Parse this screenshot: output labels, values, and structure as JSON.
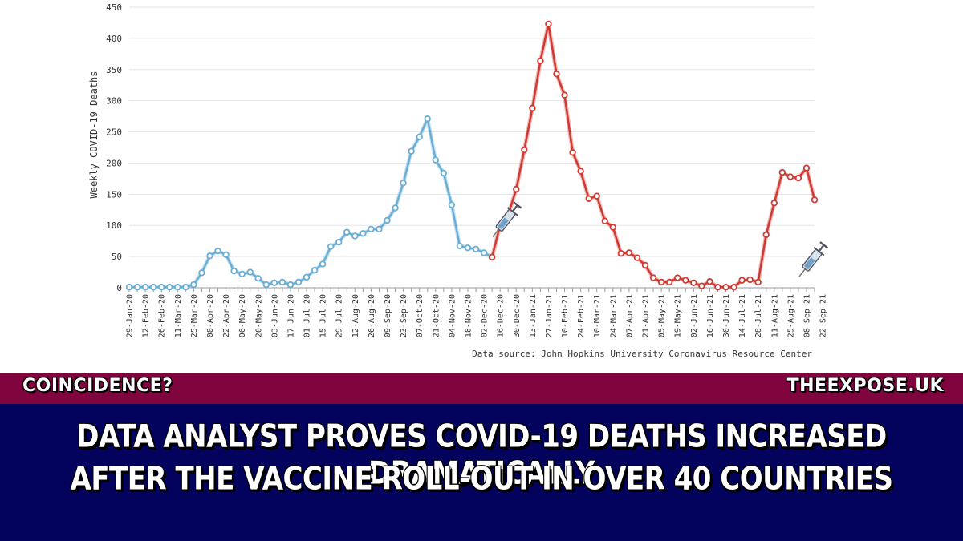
{
  "chart_data": {
    "type": "line",
    "ylabel": "Weekly COVID-19 Deaths",
    "xlabel": "",
    "ylim": [
      0,
      450
    ],
    "yticks": [
      0,
      50,
      100,
      150,
      200,
      250,
      300,
      350,
      400,
      450
    ],
    "grid": true,
    "x_tick_labels": [
      "29-Jan-20",
      "12-Feb-20",
      "26-Feb-20",
      "11-Mar-20",
      "25-Mar-20",
      "08-Apr-20",
      "22-Apr-20",
      "06-May-20",
      "20-May-20",
      "03-Jun-20",
      "17-Jun-20",
      "01-Jul-20",
      "15-Jul-20",
      "29-Jul-20",
      "12-Aug-20",
      "26-Aug-20",
      "09-Sep-20",
      "23-Sep-20",
      "07-Oct-20",
      "21-Oct-20",
      "04-Nov-20",
      "18-Nov-20",
      "02-Dec-20",
      "16-Dec-20",
      "30-Dec-20",
      "13-Jan-21",
      "27-Jan-21",
      "10-Feb-21",
      "24-Feb-21",
      "10-Mar-21",
      "24-Mar-21",
      "07-Apr-21",
      "21-Apr-21",
      "05-May-21",
      "19-May-21",
      "02-Jun-21",
      "16-Jun-21",
      "30-Jun-21",
      "14-Jul-21",
      "28-Jul-21",
      "11-Aug-21",
      "25-Aug-21",
      "08-Sep-21",
      "22-Sep-21"
    ],
    "series": [
      {
        "name": "",
        "color": "#6aaed6",
        "values": [
          1,
          1,
          1,
          1,
          1,
          1,
          1,
          1,
          5,
          24,
          51,
          59,
          53,
          27,
          22,
          25,
          15,
          5,
          8,
          9,
          5,
          9,
          17,
          28,
          38,
          66,
          73,
          89,
          83,
          87,
          94,
          94,
          108,
          128,
          168,
          219,
          242,
          271,
          205,
          184,
          133,
          67,
          64,
          62,
          56,
          49
        ]
      },
      {
        "name": "",
        "color": "#d13a33",
        "values": [
          49,
          100,
          117,
          158,
          221,
          288,
          364,
          423,
          343,
          309,
          217,
          187,
          143,
          147,
          107,
          97,
          55,
          56,
          48,
          36,
          16,
          9,
          9,
          16,
          12,
          8,
          3,
          10,
          1,
          1,
          1,
          12,
          13,
          9,
          85,
          136,
          185,
          178,
          176,
          192,
          141
        ]
      }
    ],
    "vaccine_markers": [
      {
        "x_index": 46,
        "y": 100
      },
      {
        "x_index": 84,
        "y": 36
      }
    ],
    "source": "Data source: John Hopkins University Coronavirus Resource Center"
  },
  "banner": {
    "left_label": "COINCIDENCE?",
    "right_label": "THEEXPOSE.UK",
    "colors": {
      "strip": "#80043e",
      "box": "#03035e",
      "text": "#ffffff"
    }
  },
  "headline": {
    "line1": "DATA ANALYST PROVES COVID-19 DEATHS INCREASED DRAMATICALLY",
    "line2": "AFTER THE VACCINE ROLL-OUT IN OVER 40 COUNTRIES"
  }
}
